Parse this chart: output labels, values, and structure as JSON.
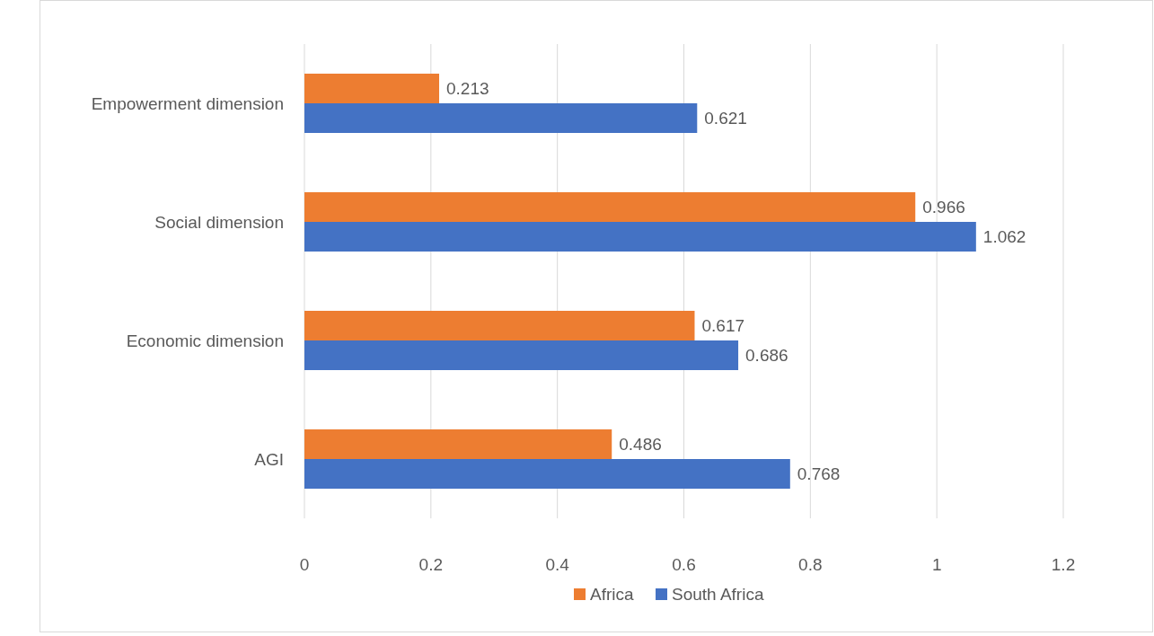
{
  "chart_data": {
    "type": "bar",
    "orientation": "horizontal",
    "categories": [
      "Empowerment dimension",
      "Social dimension",
      "Economic dimension",
      "AGI"
    ],
    "series": [
      {
        "name": "Africa",
        "color": "#ed7d31",
        "values": [
          0.213,
          0.966,
          0.617,
          0.486
        ]
      },
      {
        "name": "South Africa",
        "color": "#4472c4",
        "values": [
          0.621,
          1.062,
          0.686,
          0.768
        ]
      }
    ],
    "xlim": [
      0,
      1.2
    ],
    "xticks": [
      0,
      0.2,
      0.4,
      0.6,
      0.8,
      1,
      1.2
    ],
    "grid": "x",
    "legend": "bottom",
    "data_labels": true
  }
}
